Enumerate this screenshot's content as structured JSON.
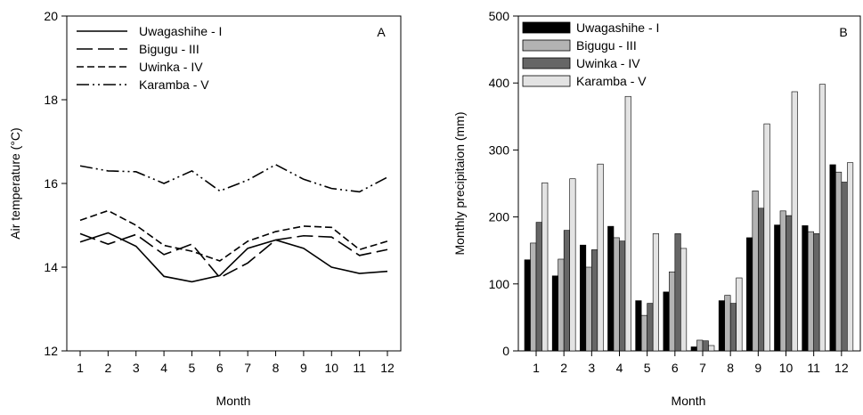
{
  "chart_data": [
    {
      "type": "line",
      "panel_label": "A",
      "xlabel": "Month",
      "ylabel": "Air temperature (°C)",
      "x": [
        1,
        2,
        3,
        4,
        5,
        6,
        7,
        8,
        9,
        10,
        11,
        12
      ],
      "ylim": [
        12,
        20
      ],
      "yticks": [
        12,
        14,
        16,
        18,
        20
      ],
      "grid": false,
      "legend_position": "top-left",
      "series": [
        {
          "name": "Uwagashihe - I",
          "style": "solid",
          "values": [
            14.6,
            14.82,
            14.5,
            13.78,
            13.65,
            13.8,
            14.45,
            14.65,
            14.45,
            14.0,
            13.85,
            13.9
          ]
        },
        {
          "name": "Bigugu - III",
          "style": "long-dash",
          "values": [
            14.8,
            14.55,
            14.78,
            14.3,
            14.55,
            13.75,
            14.1,
            14.65,
            14.75,
            14.72,
            14.28,
            14.42
          ]
        },
        {
          "name": "Uwinka - IV",
          "style": "short-dash",
          "values": [
            15.12,
            15.35,
            15.0,
            14.52,
            14.38,
            14.15,
            14.62,
            14.85,
            14.98,
            14.95,
            14.42,
            14.62
          ]
        },
        {
          "name": "Karamba - V",
          "style": "dash-dot-dot",
          "values": [
            16.42,
            16.3,
            16.28,
            16.0,
            16.3,
            15.82,
            16.08,
            16.45,
            16.1,
            15.88,
            15.8,
            16.15
          ]
        }
      ]
    },
    {
      "type": "bar",
      "panel_label": "B",
      "xlabel": "Month",
      "ylabel": "Monthly precipitaion (mm)",
      "categories": [
        "1",
        "2",
        "3",
        "4",
        "5",
        "6",
        "7",
        "8",
        "9",
        "10",
        "11",
        "12"
      ],
      "ylim": [
        0,
        500
      ],
      "yticks": [
        0,
        100,
        200,
        300,
        400,
        500
      ],
      "grid": false,
      "legend_position": "top-left",
      "series": [
        {
          "name": "Uwagashihe - I",
          "color": "#000000",
          "values": [
            136,
            112,
            158,
            186,
            75,
            88,
            6,
            75,
            169,
            188,
            187,
            278
          ]
        },
        {
          "name": "Bigugu - III",
          "color": "#b3b3b3",
          "values": [
            161,
            137,
            125,
            169,
            53,
            118,
            16,
            83,
            239,
            209,
            178,
            267
          ]
        },
        {
          "name": "Uwinka - IV",
          "color": "#666666",
          "values": [
            192,
            180,
            151,
            164,
            71,
            175,
            15,
            71,
            213,
            202,
            175,
            252
          ]
        },
        {
          "name": "Karamba - V",
          "color": "#e3e3e3",
          "values": [
            251,
            257,
            279,
            380,
            175,
            153,
            8,
            109,
            339,
            387,
            398,
            281
          ]
        }
      ]
    }
  ]
}
